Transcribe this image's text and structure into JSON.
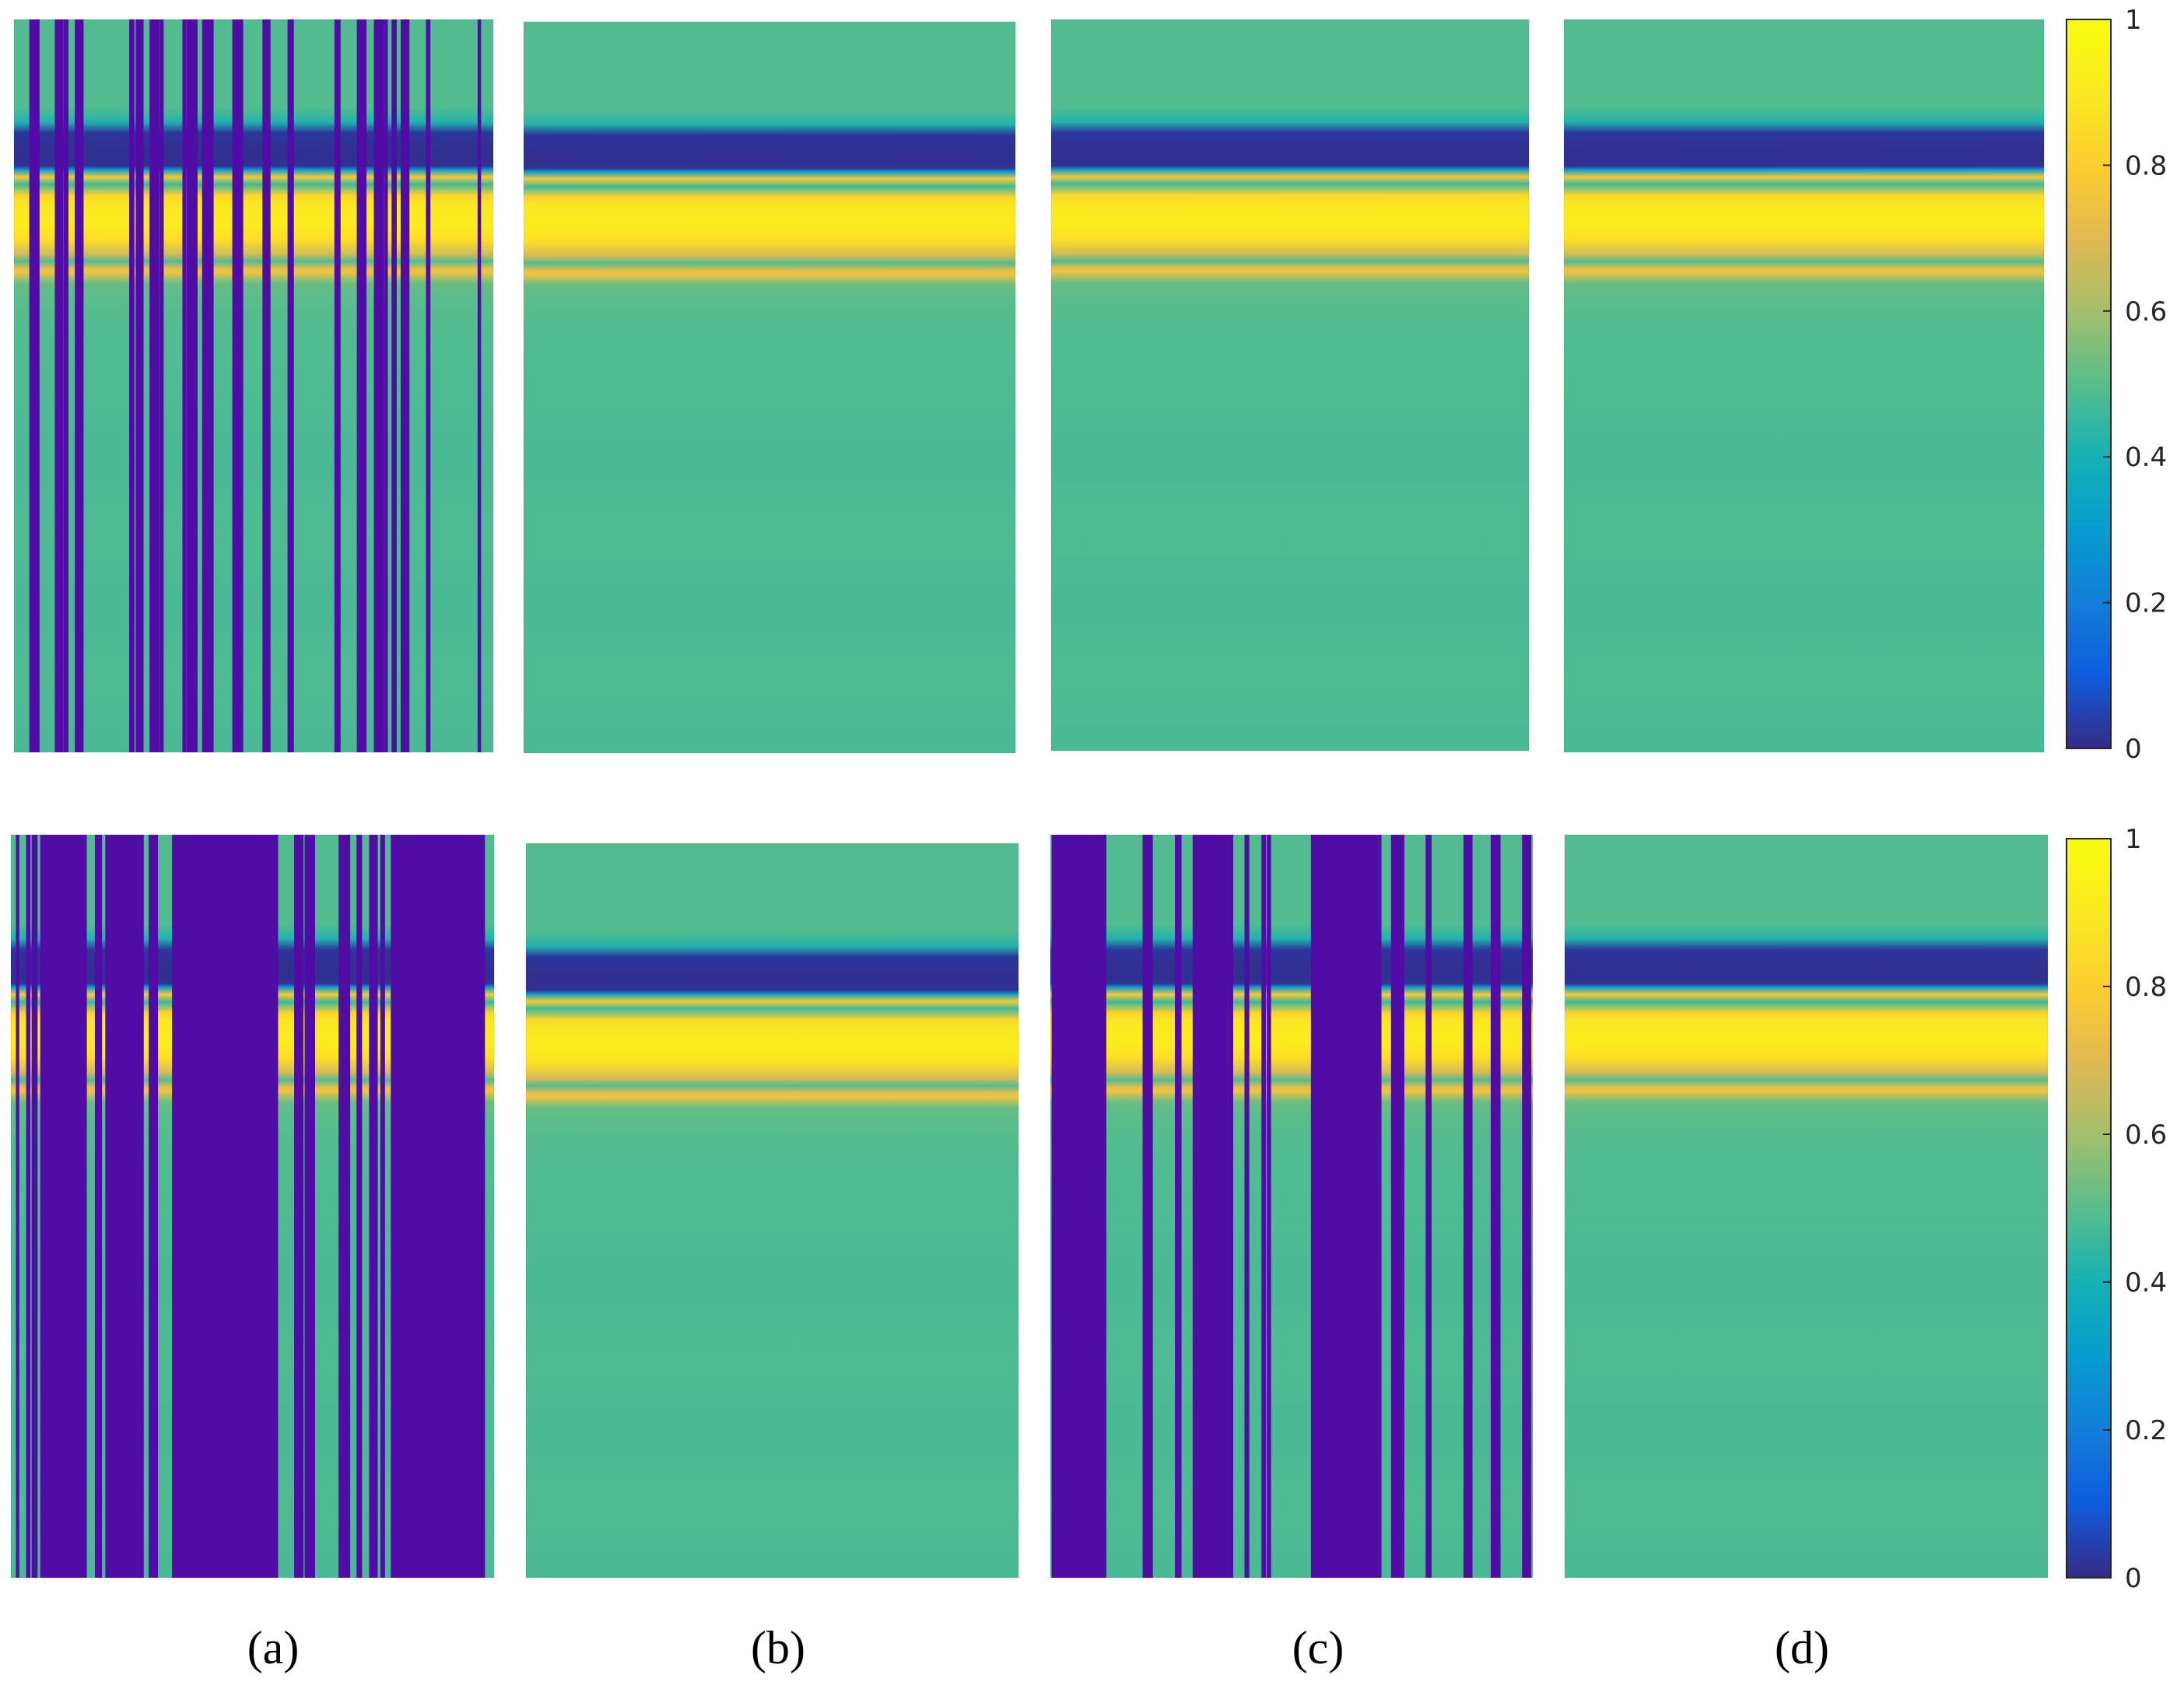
{
  "chart_data": {
    "type": "heatmap",
    "colormap": "parula",
    "value_range": [
      0,
      1
    ],
    "rows": [
      {
        "name": "row-top",
        "panels": [
          {
            "caption": "(a)",
            "missing_mode": "random",
            "missing_columns": 30,
            "missing_seed": 11
          },
          {
            "caption": "(b)",
            "missing_mode": "none"
          },
          {
            "caption": "(c)",
            "missing_mode": "none"
          },
          {
            "caption": "(d)",
            "missing_mode": "none"
          }
        ],
        "colorbar": {
          "ticks": [
            0,
            0.2,
            0.4,
            0.6,
            0.8,
            1
          ],
          "tick_labels": [
            "0",
            "0.2",
            "0.4",
            "0.6",
            "0.8",
            "1"
          ]
        }
      },
      {
        "name": "row-bottom",
        "panels": [
          {
            "caption": "(a)",
            "missing_mode": "random-block",
            "missing_columns": 45,
            "missing_seed": 29
          },
          {
            "caption": "(b)",
            "missing_mode": "none"
          },
          {
            "caption": "(c)",
            "missing_mode": "random-block",
            "missing_columns": 24,
            "missing_seed": 57
          },
          {
            "caption": "(d)",
            "missing_mode": "none"
          }
        ],
        "colorbar": {
          "ticks": [
            0,
            0.2,
            0.4,
            0.6,
            0.8,
            1
          ],
          "tick_labels": [
            "0",
            "0.2",
            "0.4",
            "0.6",
            "0.8",
            "1"
          ]
        }
      }
    ],
    "bottom_captions": [
      "(a)",
      "(b)",
      "(c)",
      "(d)"
    ],
    "profile": {
      "depth_fraction": [
        0.0,
        0.12,
        0.14,
        0.155,
        0.18,
        0.2,
        0.205,
        0.215,
        0.225,
        0.24,
        0.25,
        0.28,
        0.3,
        0.32,
        0.33,
        0.34,
        0.345,
        0.36,
        0.38,
        0.42,
        0.5,
        0.6,
        0.7,
        0.8,
        0.9,
        1.0
      ],
      "value": [
        0.55,
        0.55,
        0.42,
        0.12,
        0.05,
        0.07,
        0.3,
        0.78,
        0.5,
        0.82,
        0.92,
        0.95,
        0.9,
        0.68,
        0.55,
        0.72,
        0.75,
        0.6,
        0.57,
        0.55,
        0.54,
        0.53,
        0.54,
        0.53,
        0.54,
        0.53
      ]
    }
  }
}
